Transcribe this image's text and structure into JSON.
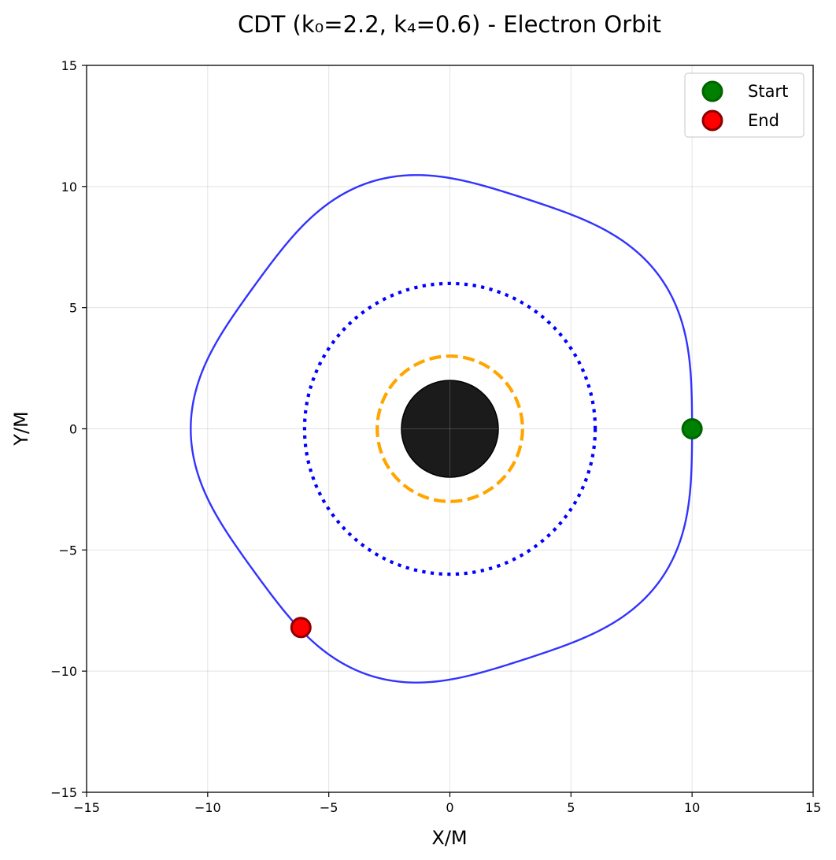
{
  "chart_data": {
    "type": "scatter",
    "title": "CDT (k₀=2.2, k₄=0.6) - Electron Orbit",
    "xlabel": "X/M",
    "ylabel": "Y/M",
    "xlim": [
      -15,
      15
    ],
    "ylim": [
      -15,
      15
    ],
    "grid": true,
    "legend_position": "top-right",
    "xticks": [
      -15,
      -10,
      -5,
      0,
      5,
      10,
      15
    ],
    "yticks": [
      -15,
      -10,
      -5,
      0,
      5,
      10,
      15
    ],
    "xtick_labels": [
      "−15",
      "−10",
      "−5",
      "0",
      "5",
      "10",
      "15"
    ],
    "ytick_labels": [
      "−15",
      "−10",
      "−5",
      "0",
      "5",
      "10",
      "15"
    ],
    "orbit": {
      "color": "#3333ff",
      "r0": 10.0,
      "lobes": 5,
      "amplitude": 0.35,
      "total_angle_deg": 592
    },
    "black_hole": {
      "radius": 2,
      "color": "#1b1b1b"
    },
    "circles": [
      {
        "radius": 3,
        "style": "dashed",
        "color": "#ffa500"
      },
      {
        "radius": 6,
        "style": "dotted",
        "color": "#0000ff"
      }
    ],
    "markers": [
      {
        "name": "Start",
        "x": 10.0,
        "y": 0.0,
        "color": "#008000",
        "edge": "#006400"
      },
      {
        "name": "End",
        "x": -6.15,
        "y": -8.2,
        "color": "#ff0000",
        "edge": "#8b0000"
      }
    ]
  }
}
